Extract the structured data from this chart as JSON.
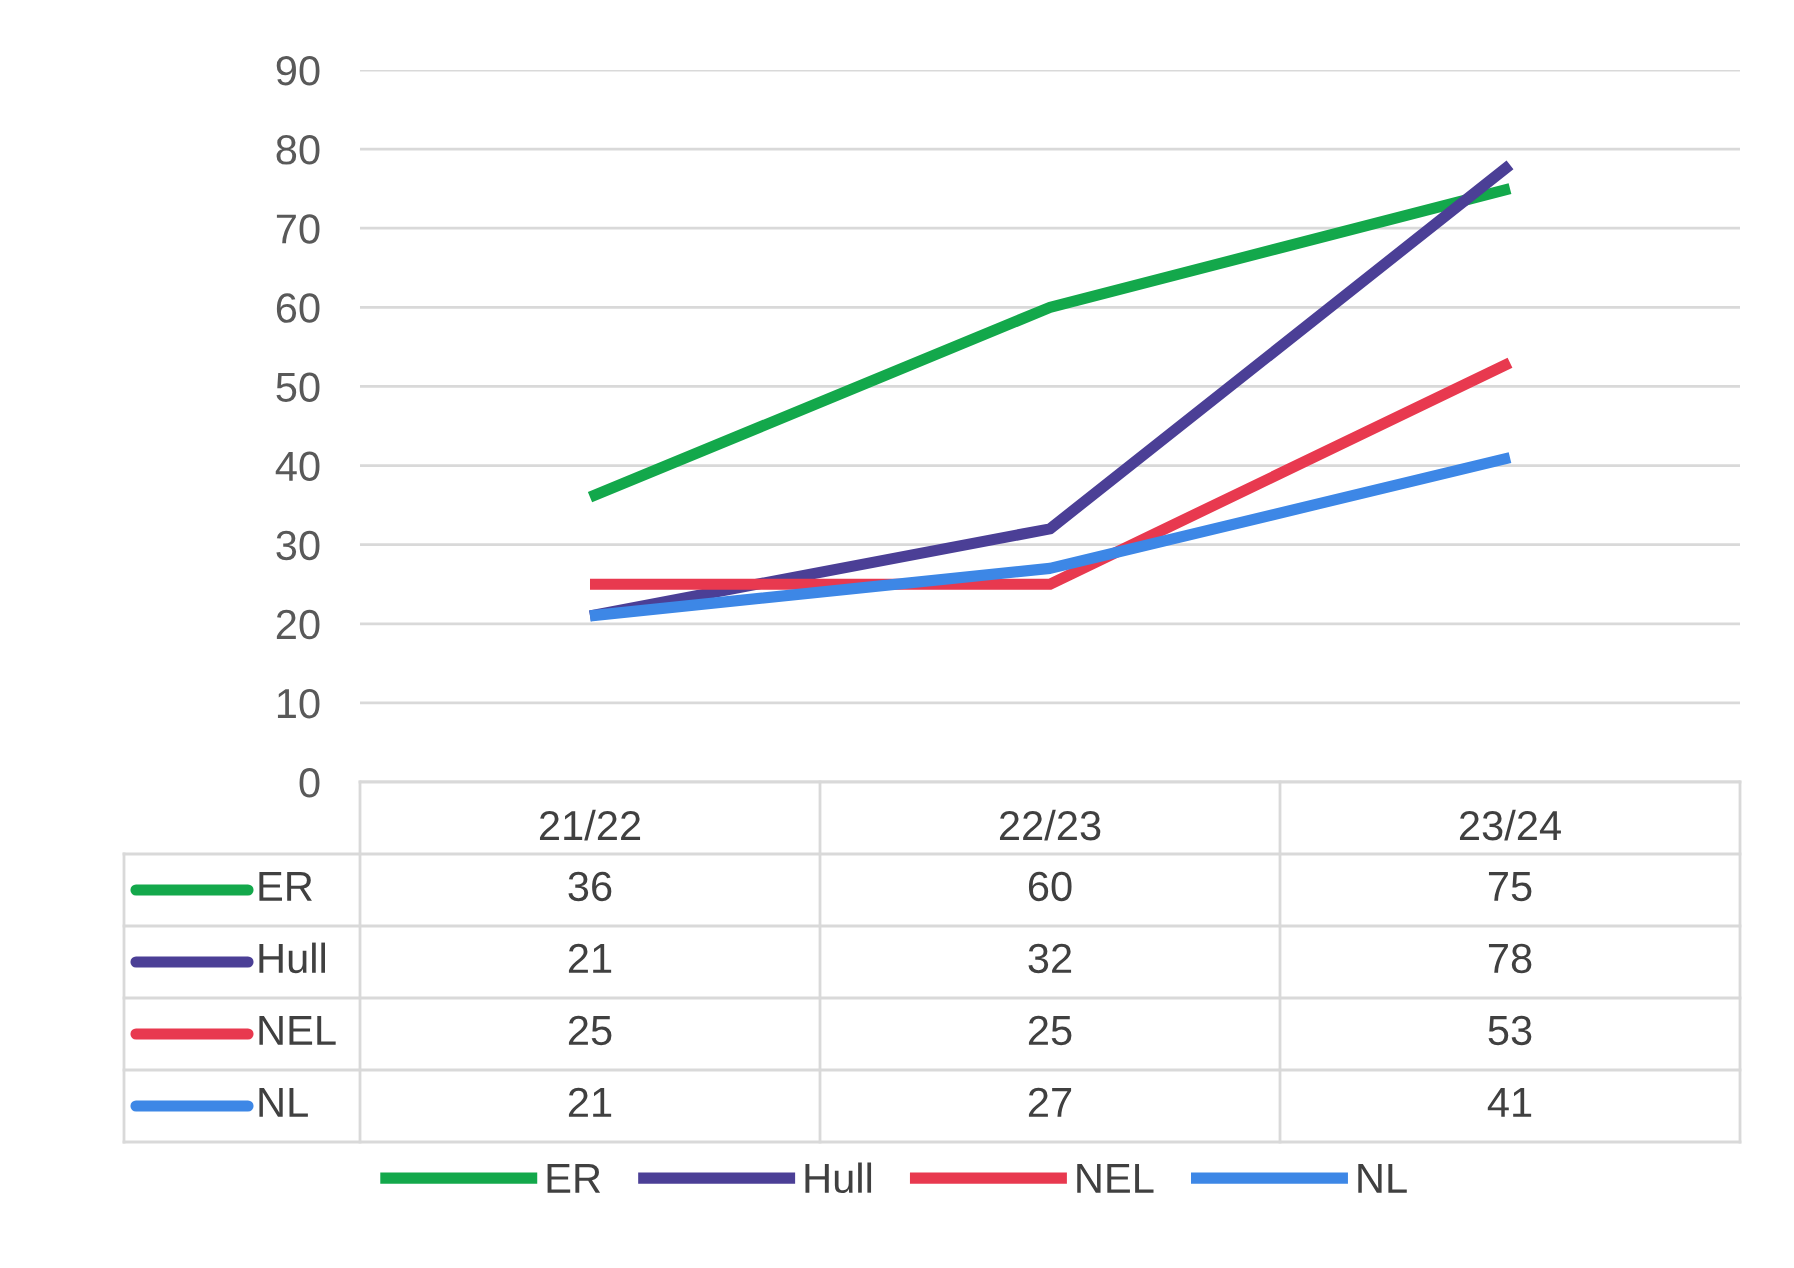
{
  "chart_data": {
    "type": "line",
    "categories": [
      "21/22",
      "22/23",
      "23/24"
    ],
    "series": [
      {
        "name": "ER",
        "color": "#13a84b",
        "values": [
          36,
          60,
          75
        ]
      },
      {
        "name": "Hull",
        "color": "#4b3f96",
        "values": [
          21,
          32,
          78
        ]
      },
      {
        "name": "NEL",
        "color": "#e8394f",
        "values": [
          25,
          25,
          53
        ]
      },
      {
        "name": "NL",
        "color": "#3d87e6",
        "values": [
          21,
          27,
          41
        ]
      }
    ],
    "ylim": [
      0,
      90
    ],
    "yticks": [
      0,
      10,
      20,
      30,
      40,
      50,
      60,
      70,
      80,
      90
    ],
    "grid": "y",
    "legend": "bottom",
    "data_labels": true,
    "marker": "none",
    "line_style": "solid"
  }
}
